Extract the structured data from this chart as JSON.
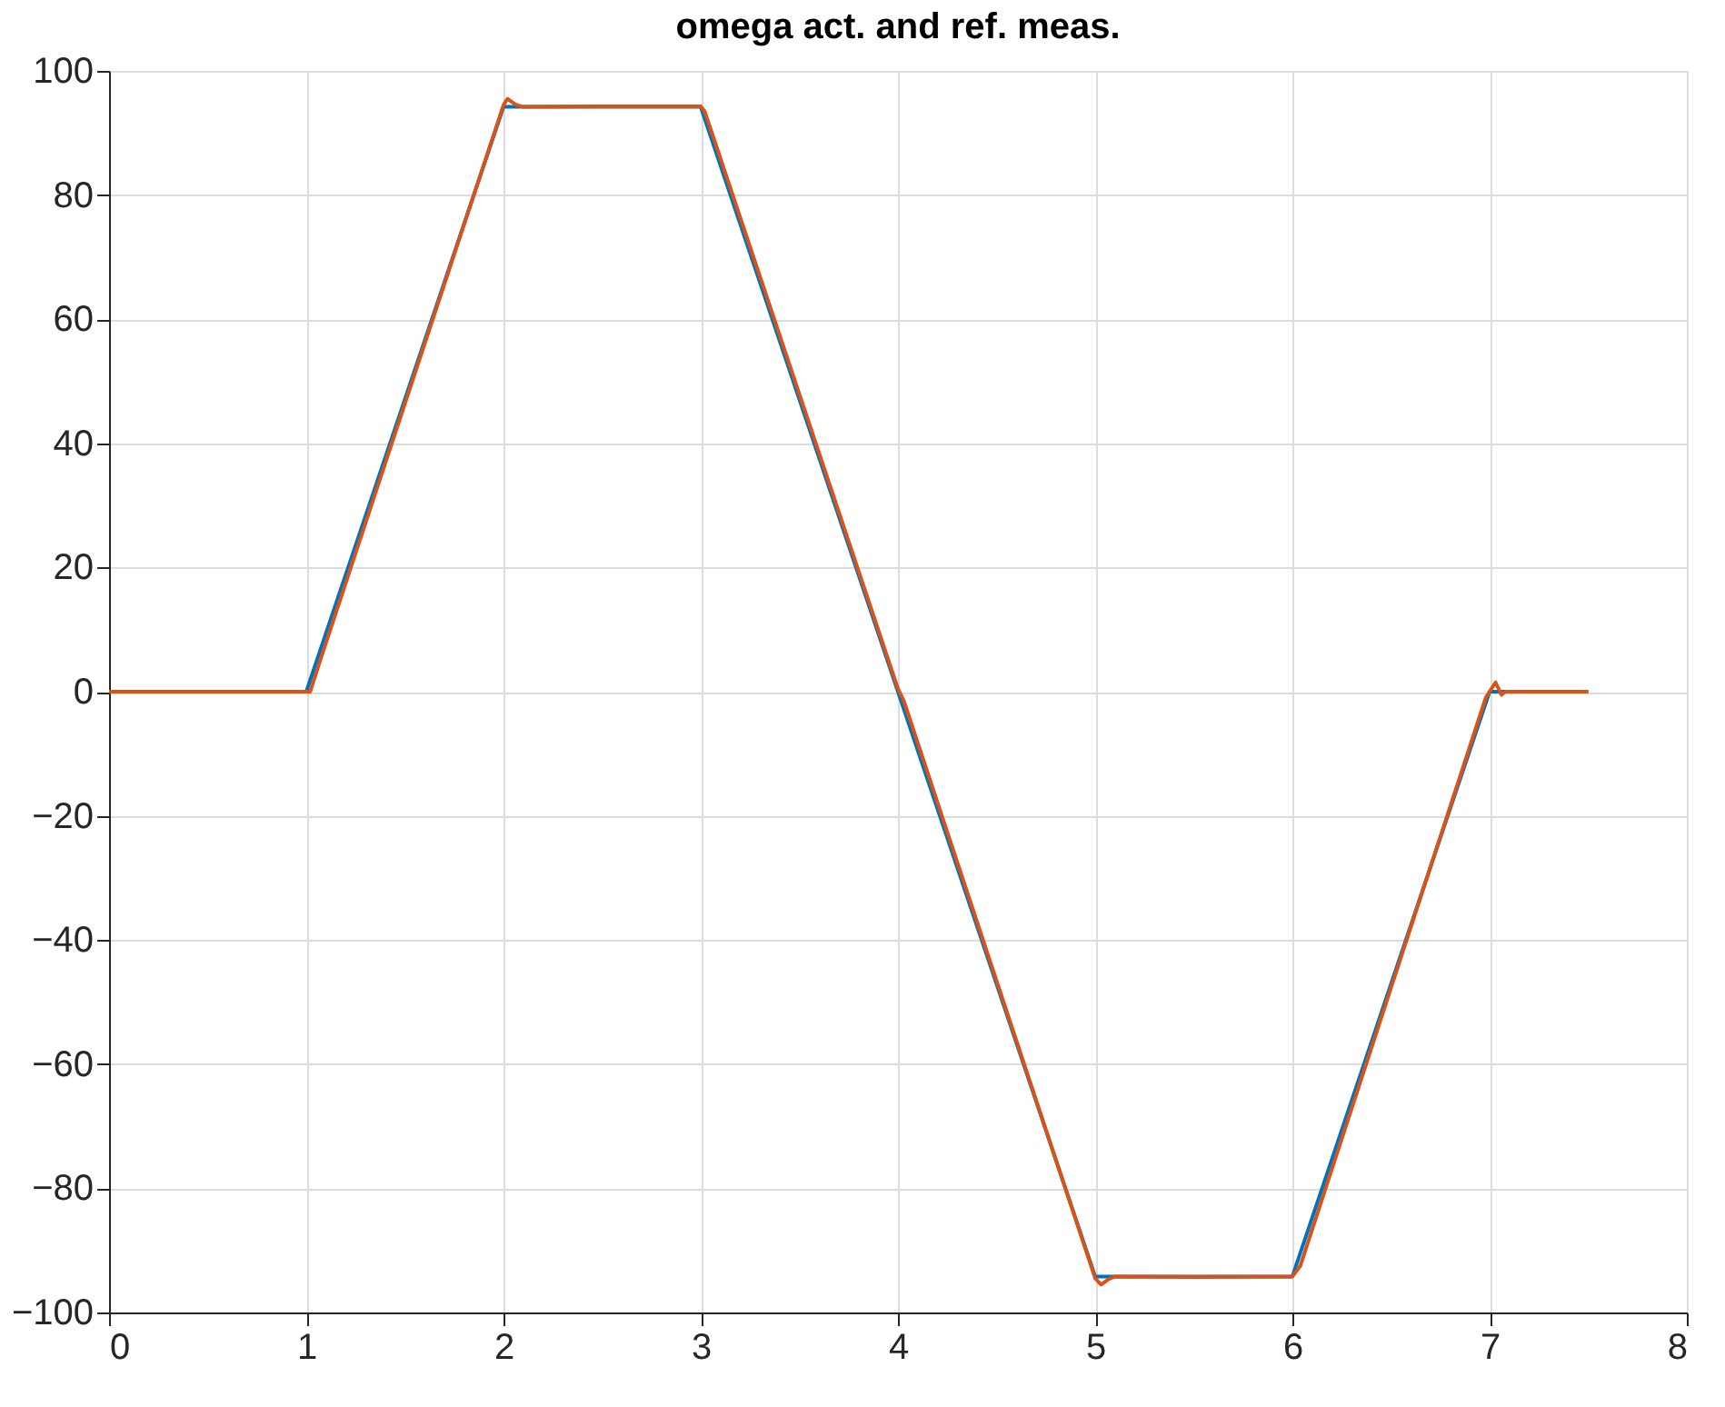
{
  "chart_data": {
    "type": "line",
    "title": "omega act. and ref. meas.",
    "xlim": [
      0,
      8
    ],
    "ylim": [
      -100,
      100
    ],
    "xticks": [
      0,
      1,
      2,
      3,
      4,
      5,
      6,
      7,
      8
    ],
    "yticks": [
      -100,
      -80,
      -60,
      -40,
      -20,
      0,
      20,
      40,
      60,
      80,
      100
    ],
    "grid": true,
    "legend": false,
    "series": [
      {
        "color": "#0072bd",
        "x": [
          0,
          1,
          2,
          3,
          5,
          6,
          7,
          7.5
        ],
        "values": [
          0,
          0,
          94.2,
          94.2,
          -94.2,
          -94.2,
          0,
          0
        ]
      },
      {
        "color": "#d95319",
        "x": [
          0,
          1.02,
          1.07,
          2.0,
          2.02,
          2.06,
          2.1,
          2.5,
          3.0,
          3.02,
          4.0,
          4.03,
          5.0,
          5.03,
          5.07,
          5.1,
          5.5,
          6.0,
          6.04,
          6.98,
          7.03,
          7.06,
          7.08,
          7.5
        ],
        "values": [
          0,
          0,
          5,
          94.5,
          95.5,
          94.6,
          94.2,
          94.3,
          94.3,
          93.5,
          0.5,
          -1.5,
          -94.5,
          -95.5,
          -94.6,
          -94.2,
          -94.3,
          -94.2,
          -92.5,
          -1,
          1.5,
          -0.5,
          0,
          0
        ]
      }
    ]
  }
}
